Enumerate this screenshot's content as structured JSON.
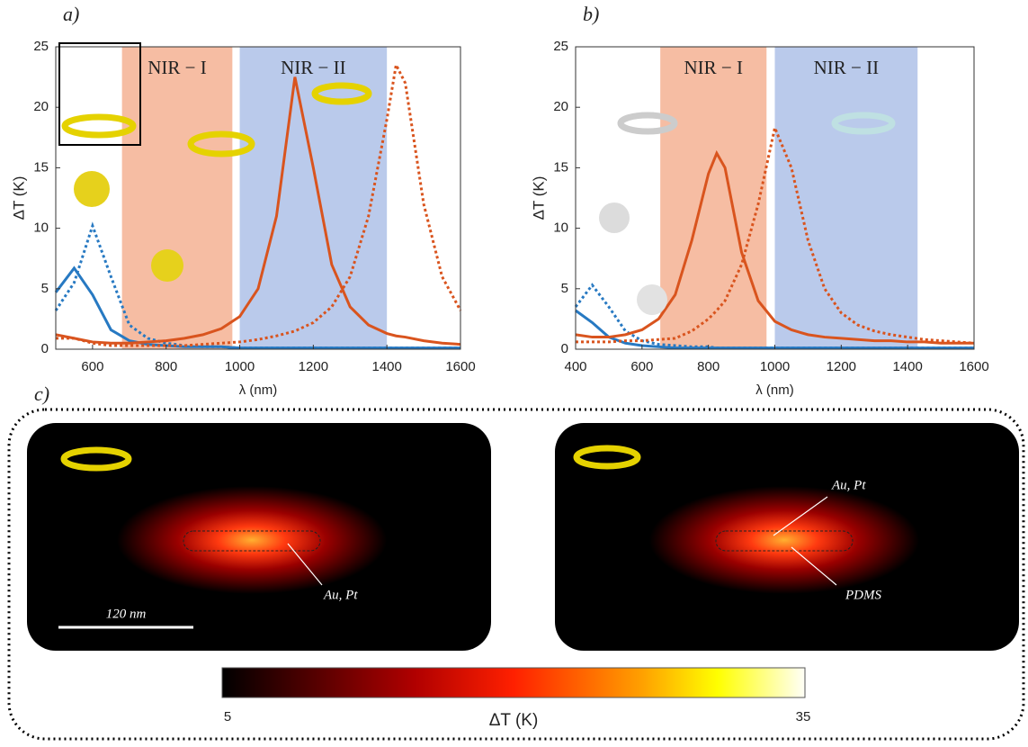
{
  "chart_data": [
    {
      "type": "line",
      "title": "a)",
      "xlabel": "λ (nm)",
      "ylabel": "ΔT (K)",
      "xlim": [
        500,
        1600
      ],
      "xticks": [
        600,
        800,
        1000,
        1200,
        1400,
        1600
      ],
      "ylim": [
        0,
        25
      ],
      "yticks": [
        0,
        5,
        10,
        15,
        20,
        25
      ],
      "bands": [
        {
          "label": "NIR − I",
          "range": [
            680,
            980
          ],
          "color": "#f2a17c"
        },
        {
          "label": "NIR − II",
          "range": [
            1000,
            1400
          ],
          "color": "#9db4e2"
        }
      ],
      "x": [
        500,
        550,
        600,
        650,
        700,
        750,
        800,
        850,
        900,
        950,
        1000,
        1050,
        1100,
        1150,
        1200,
        1250,
        1300,
        1350,
        1400,
        1425,
        1450,
        1500,
        1550,
        1600
      ],
      "series": [
        {
          "color": "#2779c2",
          "style": "solid",
          "values": [
            4.7,
            6.7,
            4.5,
            1.6,
            0.7,
            0.4,
            0.3,
            0.2,
            0.2,
            0.2,
            0.1,
            0.1,
            0.1,
            0.1,
            0.1,
            0.1,
            0.1,
            0.1,
            0.1,
            0.1,
            0.1,
            0.1,
            0.1,
            0.1
          ]
        },
        {
          "color": "#2779c2",
          "style": "dotted",
          "values": [
            3.2,
            5.5,
            10.2,
            6,
            2,
            0.9,
            0.5,
            0.3,
            0.2,
            0.2,
            0.1,
            0.1,
            0.1,
            0.1,
            0.1,
            0.1,
            0.1,
            0.1,
            0.1,
            0.1,
            0.1,
            0.1,
            0.1,
            0.1
          ]
        },
        {
          "color": "#d9541e",
          "style": "solid",
          "values": [
            1.2,
            0.9,
            0.6,
            0.5,
            0.5,
            0.6,
            0.7,
            0.9,
            1.2,
            1.7,
            2.7,
            5,
            11,
            22.5,
            15,
            7,
            3.5,
            2,
            1.3,
            1.1,
            1,
            0.7,
            0.5,
            0.4
          ]
        },
        {
          "color": "#d9541e",
          "style": "dotted",
          "values": [
            0.9,
            0.9,
            0.5,
            0.3,
            0.3,
            0.3,
            0.3,
            0.3,
            0.4,
            0.5,
            0.6,
            0.8,
            1.1,
            1.5,
            2.2,
            3.5,
            6,
            11,
            19,
            23.5,
            22,
            12,
            6,
            3.2
          ]
        }
      ]
    },
    {
      "type": "line",
      "title": "b)",
      "xlabel": "λ (nm)",
      "ylabel": "ΔT (K)",
      "xlim": [
        400,
        1600
      ],
      "xticks": [
        400,
        600,
        800,
        1000,
        1200,
        1400,
        1600
      ],
      "ylim": [
        0,
        25
      ],
      "yticks": [
        0,
        5,
        10,
        15,
        20,
        25
      ],
      "bands": [
        {
          "label": "NIR − I",
          "range": [
            655,
            975
          ],
          "color": "#f2a17c"
        },
        {
          "label": "NIR − II",
          "range": [
            1000,
            1430
          ],
          "color": "#9db4e2"
        }
      ],
      "x": [
        400,
        450,
        500,
        550,
        600,
        650,
        700,
        750,
        800,
        825,
        850,
        900,
        950,
        1000,
        1050,
        1100,
        1150,
        1200,
        1250,
        1300,
        1350,
        1400,
        1450,
        1500,
        1550,
        1600
      ],
      "series": [
        {
          "color": "#2779c2",
          "style": "solid",
          "values": [
            3.2,
            2.2,
            1,
            0.5,
            0.3,
            0.2,
            0.1,
            0.1,
            0.1,
            0.1,
            0.1,
            0.1,
            0.1,
            0.1,
            0.1,
            0.1,
            0.1,
            0.1,
            0.1,
            0.1,
            0.1,
            0.1,
            0.1,
            0.1,
            0.1,
            0.1
          ]
        },
        {
          "color": "#2779c2",
          "style": "dotted",
          "values": [
            3.5,
            5.3,
            3.5,
            1.5,
            0.7,
            0.4,
            0.3,
            0.2,
            0.2,
            0.1,
            0.1,
            0.1,
            0.1,
            0.1,
            0.1,
            0.1,
            0.1,
            0.1,
            0.1,
            0.1,
            0.1,
            0.1,
            0.1,
            0.1,
            0.1,
            0.1
          ]
        },
        {
          "color": "#d9541e",
          "style": "solid",
          "values": [
            1.2,
            1,
            1,
            1.2,
            1.6,
            2.5,
            4.5,
            9,
            14.5,
            16.2,
            15,
            8,
            4,
            2.3,
            1.6,
            1.2,
            1,
            0.9,
            0.8,
            0.7,
            0.7,
            0.6,
            0.6,
            0.5,
            0.5,
            0.5
          ]
        },
        {
          "color": "#d9541e",
          "style": "dotted",
          "values": [
            0.6,
            0.6,
            0.6,
            0.7,
            0.7,
            0.8,
            0.9,
            1.5,
            2.5,
            3.2,
            4,
            7,
            12,
            18.3,
            15,
            9,
            5,
            3,
            2,
            1.5,
            1.2,
            1,
            0.8,
            0.7,
            0.6,
            0.5
          ]
        }
      ]
    },
    {
      "type": "heatmap",
      "title": "c)",
      "scale_bar": "120 nm",
      "labels": [
        "Au, Pt",
        "Au, Pt",
        "PDMS"
      ],
      "colorbar": {
        "lim": [
          5,
          35
        ],
        "label": "ΔT (K)"
      }
    }
  ]
}
